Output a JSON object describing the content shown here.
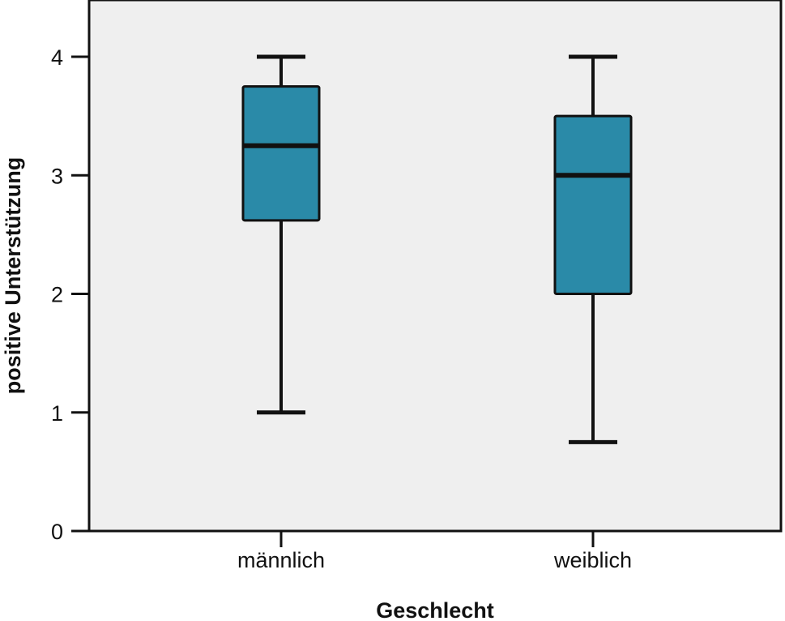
{
  "chart_data": {
    "type": "boxplot",
    "title": "",
    "xlabel": "Geschlecht",
    "ylabel": "positive Unterstützung",
    "ylim": [
      0,
      4.4
    ],
    "yticks": [
      "0",
      "1",
      "2",
      "3",
      "4"
    ],
    "categories": [
      "männlich",
      "weiblich"
    ],
    "boxes": [
      {
        "category": "männlich",
        "min": 1.0,
        "q1": 2.62,
        "median": 3.25,
        "q3": 3.75,
        "max": 4.0
      },
      {
        "category": "weiblich",
        "min": 0.75,
        "q1": 2.0,
        "median": 3.0,
        "q3": 3.5,
        "max": 4.0
      }
    ],
    "grid": false,
    "colors": {
      "box_fill": "#2a8aa8",
      "plot_bg": "#efefef",
      "line": "#111111"
    }
  }
}
